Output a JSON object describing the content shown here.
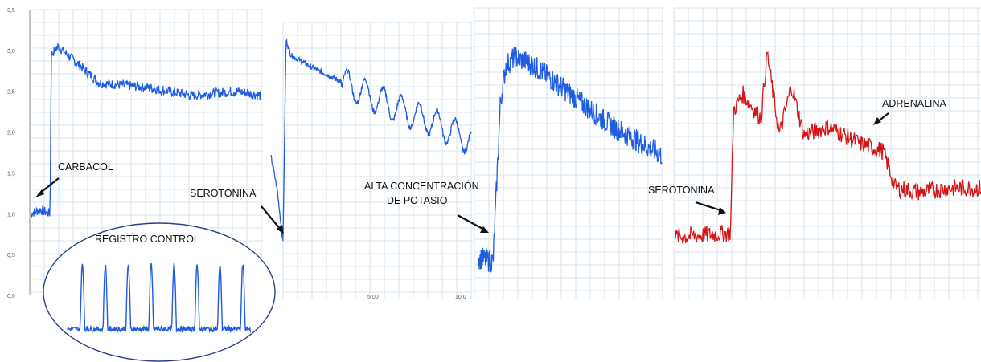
{
  "colors": {
    "blue": "#1f5ce0",
    "red": "#d41414",
    "grid": "#d6e6ef",
    "ellipse": "#2b3f8a"
  },
  "chart_data": [
    {
      "type": "line",
      "panel": "1",
      "color": "#1f5ce0",
      "y_ticks": [
        "3,5",
        "3,0",
        "2,5",
        "2,0",
        "1,5",
        "1,0",
        "0,5",
        "0,0"
      ],
      "ylim": [
        0,
        3.5
      ],
      "grid": true,
      "annotations": [
        "CARBACOL"
      ],
      "series": [
        {
          "x": [
            0,
            0.04,
            0.085,
            0.09,
            0.12,
            0.2,
            0.3,
            0.5,
            0.7,
            0.9,
            1.0
          ],
          "y": [
            1.0,
            1.05,
            1.0,
            2.95,
            3.05,
            2.85,
            2.6,
            2.55,
            2.45,
            2.5,
            2.45
          ]
        }
      ]
    },
    {
      "type": "line",
      "panel": "inset",
      "color": "#1f5ce0",
      "annotations": [
        "REGISTRO CONTROL"
      ],
      "peaks": 8
    },
    {
      "type": "line",
      "panel": "2",
      "color": "#1f5ce0",
      "x_ticks": [
        "5:00",
        "10:0"
      ],
      "grid": true,
      "annotations": [
        "SEROTONINA"
      ],
      "series": [
        {
          "x": [
            0,
            0.03,
            0.06,
            0.075,
            0.1,
            0.2,
            0.4,
            0.6,
            0.8,
            1.0
          ],
          "y": [
            1.8,
            1.4,
            0.7,
            3.3,
            3.1,
            2.95,
            2.7,
            2.45,
            2.25,
            2.0
          ]
        }
      ]
    },
    {
      "type": "line",
      "panel": "3",
      "color": "#1f5ce0",
      "grid": true,
      "annotations": [
        "ALTA CONCENTRACIÓN",
        "DE POTASIO"
      ],
      "series": [
        {
          "x": [
            0,
            0.08,
            0.12,
            0.15,
            0.2,
            0.3,
            0.5,
            0.7,
            0.85,
            1.0
          ],
          "y": [
            0.5,
            0.45,
            2.4,
            2.85,
            2.95,
            2.85,
            2.5,
            2.15,
            1.95,
            1.75
          ]
        }
      ]
    },
    {
      "type": "line",
      "panel": "4",
      "color": "#d41414",
      "grid": true,
      "annotations": [
        "SEROTONINA",
        "ADRENALINA"
      ],
      "series": [
        {
          "x": [
            0,
            0.18,
            0.19,
            0.22,
            0.28,
            0.3,
            0.34,
            0.38,
            0.42,
            0.5,
            0.6,
            0.68,
            0.72,
            0.8,
            0.9,
            1.0
          ],
          "y": [
            0.75,
            0.8,
            2.3,
            2.5,
            2.2,
            3.0,
            2.0,
            2.6,
            2.0,
            2.1,
            1.9,
            1.8,
            1.35,
            1.3,
            1.35,
            1.35
          ]
        }
      ]
    }
  ]
}
